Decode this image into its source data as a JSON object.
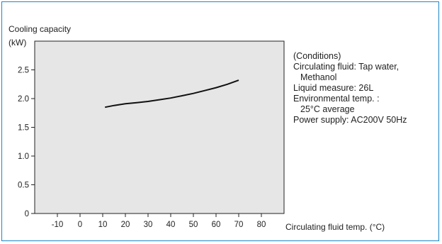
{
  "chart_data": {
    "type": "line",
    "ylabel": "Cooling capacity",
    "yunit": "(kW)",
    "xlabel": "Circulating fluid temp. (°C)",
    "xlim": [
      -20,
      90
    ],
    "ylim": [
      0,
      3.0
    ],
    "xticks": [
      -10,
      0,
      10,
      20,
      30,
      40,
      50,
      60,
      70,
      80
    ],
    "yticks": [
      0,
      0.5,
      1.0,
      1.5,
      2.0,
      2.5
    ],
    "ytick_labels": [
      "0",
      "0.5",
      "1.0",
      "1.5",
      "2.0",
      "2.5"
    ],
    "grid": false,
    "plot_background": "#e6e6e6",
    "series": [
      {
        "color": "#111111",
        "x": [
          11,
          15,
          20,
          25,
          30,
          35,
          40,
          45,
          50,
          55,
          60,
          65,
          70
        ],
        "y": [
          1.85,
          1.88,
          1.91,
          1.93,
          1.95,
          1.98,
          2.01,
          2.05,
          2.09,
          2.14,
          2.19,
          2.25,
          2.32
        ]
      }
    ]
  },
  "conditions": {
    "lines": [
      "(Conditions)",
      "Circulating fluid: Tap water,",
      "Methanol",
      "Liquid measure: 26L",
      "Environmental temp. :",
      "25°C average",
      "Power supply: AC200V 50Hz"
    ]
  },
  "colors": {
    "frame_border": "#1c86c8"
  }
}
